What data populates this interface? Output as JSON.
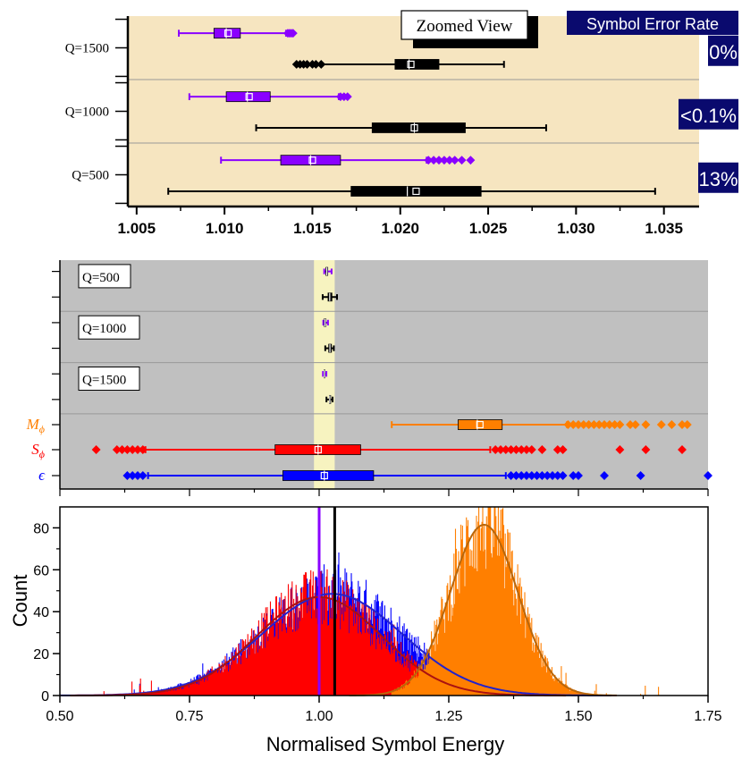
{
  "chart_data": [
    {
      "type": "boxplot",
      "panel": "zoomed",
      "annotation": "Zoomed View",
      "ser_header": "Symbol Error Rate",
      "xlim": [
        1.0045,
        1.037
      ],
      "xticks": [
        1.005,
        1.01,
        1.015,
        1.02,
        1.025,
        1.03,
        1.035
      ],
      "xtick_labels": [
        "1.005",
        "1.010",
        "1.015",
        "1.020",
        "1.025",
        "1.030",
        "1.035"
      ],
      "groups": [
        {
          "label": "Q=1500",
          "ser": "0%",
          "boxes": [
            {
              "color": "#8a00ff",
              "whisker_low": 1.0074,
              "q1": 1.0094,
              "median": 1.0101,
              "mean": 1.0102,
              "q3": 1.0109,
              "whisker_high": 1.0135,
              "outliers_low": [],
              "outliers_high": [
                1.0136,
                1.0137,
                1.0138,
                1.0139
              ]
            },
            {
              "color": "#000000",
              "whisker_low": 1.0141,
              "q1": 1.0197,
              "median": 1.0205,
              "mean": 1.0206,
              "q3": 1.0222,
              "whisker_high": 1.0259,
              "outliers_low": [
                1.0141,
                1.0143,
                1.0145,
                1.0147,
                1.015,
                1.0152,
                1.0155
              ],
              "outliers_high": []
            }
          ]
        },
        {
          "label": "Q=1000",
          "ser": "<0.1%",
          "boxes": [
            {
              "color": "#8a00ff",
              "whisker_low": 1.008,
              "q1": 1.0101,
              "median": 1.0113,
              "mean": 1.0114,
              "q3": 1.0126,
              "whisker_high": 1.0165,
              "outliers_low": [],
              "outliers_high": [
                1.0166,
                1.0168,
                1.017
              ]
            },
            {
              "color": "#000000",
              "whisker_low": 1.0118,
              "q1": 1.0184,
              "median": 1.0208,
              "mean": 1.0208,
              "q3": 1.0237,
              "whisker_high": 1.0283,
              "outliers_low": [],
              "outliers_high": []
            }
          ]
        },
        {
          "label": "Q=500",
          "ser": "13%",
          "boxes": [
            {
              "color": "#8a00ff",
              "whisker_low": 1.0098,
              "q1": 1.0132,
              "median": 1.0149,
              "mean": 1.015,
              "q3": 1.0166,
              "whisker_high": 1.0215,
              "outliers_low": [],
              "outliers_high": [
                1.0216,
                1.0219,
                1.0222,
                1.0225,
                1.0228,
                1.0231,
                1.0235,
                1.024
              ]
            },
            {
              "color": "#000000",
              "whisker_low": 1.0068,
              "q1": 1.0172,
              "median": 1.0204,
              "mean": 1.0209,
              "q3": 1.0246,
              "whisker_high": 1.0345,
              "outliers_low": [],
              "outliers_high": []
            }
          ]
        }
      ]
    },
    {
      "type": "boxplot",
      "panel": "overview",
      "xlim": [
        0.5,
        1.75
      ],
      "highlight_band": [
        0.99,
        1.03
      ],
      "rows": [
        {
          "label": "Q=500",
          "tex": "",
          "boxes": [
            {
              "color": "#8a00ff",
              "whisker_low": 1.0098,
              "q1": 1.0132,
              "median": 1.0149,
              "mean": 1.015,
              "q3": 1.0166,
              "whisker_high": 1.024,
              "outliers_low": [],
              "outliers_high": []
            },
            {
              "color": "#000000",
              "whisker_low": 1.0068,
              "q1": 1.0172,
              "median": 1.0204,
              "mean": 1.0209,
              "q3": 1.0246,
              "whisker_high": 1.0345,
              "outliers_low": [],
              "outliers_high": []
            }
          ]
        },
        {
          "label": "Q=1000",
          "tex": "",
          "boxes": [
            {
              "color": "#8a00ff",
              "whisker_low": 1.008,
              "q1": 1.0101,
              "median": 1.0113,
              "mean": 1.0114,
              "q3": 1.0126,
              "whisker_high": 1.017,
              "outliers_low": [],
              "outliers_high": []
            },
            {
              "color": "#000000",
              "whisker_low": 1.0118,
              "q1": 1.0184,
              "median": 1.0208,
              "mean": 1.0208,
              "q3": 1.0237,
              "whisker_high": 1.0283,
              "outliers_low": [],
              "outliers_high": []
            }
          ]
        },
        {
          "label": "Q=1500",
          "tex": "",
          "boxes": [
            {
              "color": "#8a00ff",
              "whisker_low": 1.0074,
              "q1": 1.0094,
              "median": 1.0101,
              "mean": 1.0102,
              "q3": 1.0109,
              "whisker_high": 1.0139,
              "outliers_low": [],
              "outliers_high": []
            },
            {
              "color": "#000000",
              "whisker_low": 1.0141,
              "q1": 1.0197,
              "median": 1.0205,
              "mean": 1.0206,
              "q3": 1.0222,
              "whisker_high": 1.0259,
              "outliers_low": [],
              "outliers_high": []
            }
          ]
        },
        {
          "label": "M_phi",
          "tex": "M",
          "sub": "ϕ",
          "color": "#ff7f00",
          "boxes": [
            {
              "color": "#ff7f00",
              "whisker_low": 1.14,
              "q1": 1.268,
              "median": 1.305,
              "mean": 1.31,
              "q3": 1.353,
              "whisker_high": 1.478,
              "outliers_low": [],
              "outliers_high": [
                1.48,
                1.49,
                1.5,
                1.51,
                1.52,
                1.53,
                1.54,
                1.55,
                1.56,
                1.57,
                1.58,
                1.6,
                1.61,
                1.63,
                1.66,
                1.68,
                1.7,
                1.71
              ]
            }
          ]
        },
        {
          "label": "S_phi",
          "tex": "S",
          "sub": "ϕ",
          "color": "#ff0000",
          "boxes": [
            {
              "color": "#ff0000",
              "whisker_low": 0.665,
              "q1": 0.915,
              "median": 0.998,
              "mean": 0.998,
              "q3": 1.08,
              "whisker_high": 1.33,
              "outliers_low": [
                0.57,
                0.61,
                0.62,
                0.63,
                0.64,
                0.65,
                0.66
              ],
              "outliers_high": [
                1.34,
                1.35,
                1.36,
                1.37,
                1.38,
                1.39,
                1.4,
                1.41,
                1.43,
                1.46,
                1.47,
                1.58,
                1.63,
                1.7
              ]
            }
          ]
        },
        {
          "label": "epsilon",
          "tex": "ϵ",
          "sub": "",
          "color": "#0000ff",
          "boxes": [
            {
              "color": "#0000ff",
              "whisker_low": 0.67,
              "q1": 0.93,
              "median": 1.01,
              "mean": 1.01,
              "q3": 1.105,
              "whisker_high": 1.36,
              "outliers_low": [
                0.63,
                0.64,
                0.65,
                0.66
              ],
              "outliers_high": [
                1.37,
                1.38,
                1.39,
                1.4,
                1.41,
                1.42,
                1.43,
                1.44,
                1.45,
                1.46,
                1.47,
                1.49,
                1.5,
                1.55,
                1.62,
                1.75
              ]
            }
          ]
        }
      ]
    },
    {
      "type": "histogram",
      "panel": "histogram",
      "xlabel": "Normalised Symbol Energy",
      "ylabel": "Count",
      "xlim": [
        0.5,
        1.75
      ],
      "ylim": [
        0,
        90
      ],
      "xticks": [
        0.5,
        0.75,
        1.0,
        1.25,
        1.5,
        1.75
      ],
      "xtick_labels": [
        "0.50",
        "0.75",
        "1.00",
        "1.25",
        "1.50",
        "1.75"
      ],
      "yticks": [
        0,
        20,
        40,
        60,
        80
      ],
      "ytick_labels": [
        "0",
        "20",
        "40",
        "60",
        "80"
      ],
      "series": [
        {
          "color": "#0000ff",
          "mean": 1.025,
          "sd": 0.135,
          "peak": 48.5,
          "x_min": 0.6,
          "x_max": 1.44
        },
        {
          "color": "#ff0000",
          "mean": 1.0,
          "sd": 0.12,
          "peak": 47,
          "x_min": 0.57,
          "x_max": 1.33
        },
        {
          "color": "#ff7f00",
          "mean": 1.318,
          "sd": 0.065,
          "peak": 81.5,
          "x_min": 1.14,
          "x_max": 1.71
        }
      ],
      "fits": [
        {
          "color": "#2222cc",
          "mean": 1.025,
          "sd": 0.135,
          "peak": 48.5
        },
        {
          "color": "#aa1111",
          "mean": 1.0,
          "sd": 0.12,
          "peak": 47
        },
        {
          "color": "#b8660b",
          "mean": 1.318,
          "sd": 0.065,
          "peak": 81.5
        }
      ],
      "vlines": [
        {
          "x": 1.0,
          "color": "#8a00ff",
          "height": 90
        },
        {
          "x": 1.03,
          "color": "#000000",
          "height": 90
        }
      ]
    }
  ]
}
